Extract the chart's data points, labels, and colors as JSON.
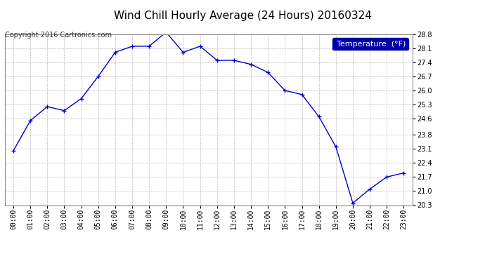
{
  "title": "Wind Chill Hourly Average (24 Hours) 20160324",
  "copyright": "Copyright 2016 Cartronics.com",
  "legend_label": "Temperature  (°F)",
  "hours": [
    "00:00",
    "01:00",
    "02:00",
    "03:00",
    "04:00",
    "05:00",
    "06:00",
    "07:00",
    "08:00",
    "09:00",
    "10:00",
    "11:00",
    "12:00",
    "13:00",
    "14:00",
    "15:00",
    "16:00",
    "17:00",
    "18:00",
    "19:00",
    "20:00",
    "21:00",
    "22:00",
    "23:00"
  ],
  "values": [
    23.0,
    24.5,
    25.2,
    25.0,
    25.6,
    26.7,
    27.9,
    28.2,
    28.2,
    28.9,
    27.9,
    28.2,
    27.5,
    27.5,
    27.3,
    26.9,
    26.0,
    25.8,
    24.7,
    23.2,
    20.4,
    21.1,
    21.7,
    21.9
  ],
  "ylim": [
    20.3,
    28.8
  ],
  "yticks": [
    20.3,
    21.0,
    21.7,
    22.4,
    23.1,
    23.8,
    24.6,
    25.3,
    26.0,
    26.7,
    27.4,
    28.1,
    28.8
  ],
  "line_color": "#0000cc",
  "marker": "+",
  "marker_size": 5,
  "marker_linewidth": 1.0,
  "background_color": "#ffffff",
  "plot_bg_color": "#ffffff",
  "grid_color": "#aaaaaa",
  "title_fontsize": 11,
  "tick_fontsize": 7,
  "copyright_fontsize": 7,
  "legend_bg_color": "#0000aa",
  "legend_text_color": "#ffffff",
  "legend_fontsize": 8
}
